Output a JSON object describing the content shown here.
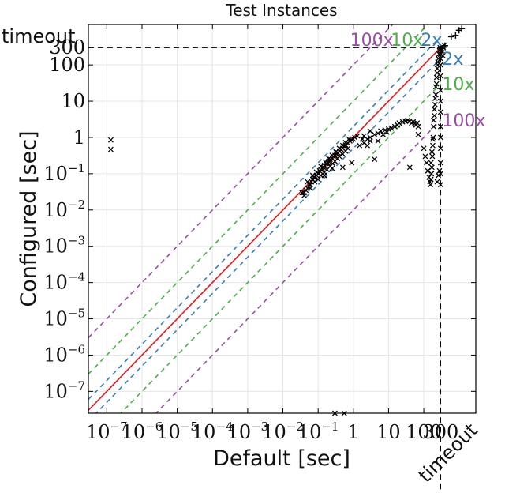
{
  "chart_data": {
    "type": "scatter",
    "title": "Test Instances",
    "xlabel": "Default [sec]",
    "ylabel": "Configured [sec]",
    "scale": "log",
    "xlim": [
      3e-08,
      3000
    ],
    "ylim": [
      2.5e-08,
      1300
    ],
    "timeout_value": 300,
    "timeout_label": "timeout",
    "x_ticks": [
      {
        "value": 1e-07,
        "base": "10",
        "exp": "−7"
      },
      {
        "value": 1e-06,
        "base": "10",
        "exp": "−6"
      },
      {
        "value": 1e-05,
        "base": "10",
        "exp": "−5"
      },
      {
        "value": 0.0001,
        "base": "10",
        "exp": "−4"
      },
      {
        "value": 0.001,
        "base": "10",
        "exp": "−3"
      },
      {
        "value": 0.01,
        "base": "10",
        "exp": "−2"
      },
      {
        "value": 0.1,
        "base": "10",
        "exp": "−1"
      },
      {
        "value": 1,
        "base": "1",
        "exp": ""
      },
      {
        "value": 10,
        "base": "10",
        "exp": ""
      },
      {
        "value": 100,
        "base": "100",
        "exp": ""
      },
      {
        "value": 300,
        "base": "300",
        "exp": ""
      }
    ],
    "y_ticks": [
      {
        "value": 1e-07,
        "base": "10",
        "exp": "−7"
      },
      {
        "value": 1e-06,
        "base": "10",
        "exp": "−6"
      },
      {
        "value": 1e-05,
        "base": "10",
        "exp": "−5"
      },
      {
        "value": 0.0001,
        "base": "10",
        "exp": "−4"
      },
      {
        "value": 0.001,
        "base": "10",
        "exp": "−3"
      },
      {
        "value": 0.01,
        "base": "10",
        "exp": "−2"
      },
      {
        "value": 0.1,
        "base": "10",
        "exp": "−1"
      },
      {
        "value": 1,
        "base": "1",
        "exp": ""
      },
      {
        "value": 10,
        "base": "10",
        "exp": ""
      },
      {
        "value": 100,
        "base": "100",
        "exp": ""
      },
      {
        "value": 300,
        "base": "300",
        "exp": ""
      }
    ],
    "reference_lines": [
      {
        "factor": 100,
        "label": "100x",
        "color": "#984ea3"
      },
      {
        "factor": 10,
        "label": "10x",
        "color": "#4daf4a"
      },
      {
        "factor": 2,
        "label": "2x",
        "color": "#377eb8"
      },
      {
        "factor": 1,
        "label": "",
        "color": "#e41a1c"
      },
      {
        "factor": 0.5,
        "label": "2x",
        "color": "#377eb8"
      },
      {
        "factor": 0.1,
        "label": "10x",
        "color": "#4daf4a"
      },
      {
        "factor": 0.01,
        "label": "100x",
        "color": "#984ea3"
      }
    ],
    "grid": true,
    "marker_color": "#000000",
    "series": [
      {
        "marker": "x",
        "points": [
          [
            1.3e-07,
            0.85
          ],
          [
            1.3e-07,
            0.47
          ],
          [
            0.3,
            2.5e-08
          ],
          [
            0.55,
            2.5e-08
          ],
          [
            0.04,
            0.03
          ],
          [
            0.045,
            0.035
          ],
          [
            0.05,
            0.04
          ],
          [
            0.055,
            0.05
          ],
          [
            0.06,
            0.05
          ],
          [
            0.065,
            0.06
          ],
          [
            0.07,
            0.07
          ],
          [
            0.075,
            0.08
          ],
          [
            0.08,
            0.08
          ],
          [
            0.09,
            0.09
          ],
          [
            0.1,
            0.1
          ],
          [
            0.11,
            0.12
          ],
          [
            0.12,
            0.13
          ],
          [
            0.13,
            0.14
          ],
          [
            0.14,
            0.15
          ],
          [
            0.15,
            0.17
          ],
          [
            0.17,
            0.19
          ],
          [
            0.19,
            0.2
          ],
          [
            0.2,
            0.22
          ],
          [
            0.22,
            0.25
          ],
          [
            0.25,
            0.27
          ],
          [
            0.27,
            0.3
          ],
          [
            0.3,
            0.32
          ],
          [
            0.33,
            0.35
          ],
          [
            0.36,
            0.38
          ],
          [
            0.4,
            0.42
          ],
          [
            0.45,
            0.47
          ],
          [
            0.5,
            0.5
          ],
          [
            0.55,
            0.58
          ],
          [
            0.6,
            0.62
          ],
          [
            0.7,
            0.7
          ],
          [
            0.8,
            0.8
          ],
          [
            0.9,
            0.85
          ],
          [
            1.0,
            0.9
          ],
          [
            1.1,
            1.0
          ],
          [
            1.3,
            1.1
          ],
          [
            0.06,
            0.04
          ],
          [
            0.08,
            0.06
          ],
          [
            0.1,
            0.07
          ],
          [
            0.12,
            0.09
          ],
          [
            0.15,
            0.11
          ],
          [
            0.18,
            0.13
          ],
          [
            0.22,
            0.16
          ],
          [
            0.26,
            0.19
          ],
          [
            0.3,
            0.22
          ],
          [
            0.35,
            0.26
          ],
          [
            0.4,
            0.3
          ],
          [
            0.5,
            0.35
          ],
          [
            0.6,
            0.42
          ],
          [
            0.7,
            0.5
          ],
          [
            0.05,
            0.06
          ],
          [
            0.07,
            0.09
          ],
          [
            0.09,
            0.11
          ],
          [
            0.12,
            0.16
          ],
          [
            0.16,
            0.21
          ],
          [
            0.2,
            0.26
          ],
          [
            0.25,
            0.32
          ],
          [
            0.32,
            0.4
          ],
          [
            0.4,
            0.5
          ],
          [
            0.5,
            0.6
          ],
          [
            0.6,
            0.72
          ],
          [
            0.75,
            0.9
          ],
          [
            0.035,
            0.03
          ],
          [
            0.04,
            0.025
          ],
          [
            0.5,
            0.15
          ],
          [
            0.9,
            0.2
          ],
          [
            0.25,
            0.14
          ],
          [
            0.15,
            0.09
          ],
          [
            4.0,
            0.25
          ],
          [
            1.5,
            0.6
          ],
          [
            2.0,
            0.7
          ],
          [
            2.5,
            0.9
          ],
          [
            3.0,
            1.0
          ],
          [
            4.0,
            1.2
          ],
          [
            5.0,
            1.3
          ],
          [
            6.0,
            1.5
          ],
          [
            8.0,
            1.6
          ],
          [
            10.0,
            1.7
          ],
          [
            12.0,
            1.8
          ],
          [
            15.0,
            2.0
          ],
          [
            18.0,
            2.2
          ],
          [
            20.0,
            2.5
          ],
          [
            25.0,
            2.7
          ],
          [
            30.0,
            2.8
          ],
          [
            35.0,
            3.0
          ],
          [
            40.0,
            2.8
          ],
          [
            45.0,
            2.5
          ],
          [
            50.0,
            2.7
          ],
          [
            55.0,
            2.4
          ],
          [
            60.0,
            2.2
          ],
          [
            65.0,
            2.5
          ],
          [
            70.0,
            2.0
          ],
          [
            2.0,
            1.1
          ],
          [
            2.5,
            0.6
          ],
          [
            3.0,
            0.8
          ],
          [
            1.8,
            0.9
          ],
          [
            5.0,
            0.8
          ],
          [
            7.0,
            1.2
          ],
          [
            9.0,
            1.4
          ],
          [
            3.0,
            1.5
          ],
          [
            40.0,
            0.15
          ],
          [
            70.0,
            1.2
          ],
          [
            100.0,
            0.5
          ],
          [
            110.0,
            0.3
          ],
          [
            120.0,
            0.2
          ],
          [
            130.0,
            0.12
          ],
          [
            140.0,
            0.08
          ],
          [
            150.0,
            0.06
          ],
          [
            155.0,
            0.05
          ],
          [
            160.0,
            0.07
          ],
          [
            165.0,
            0.1
          ],
          [
            170.0,
            0.15
          ],
          [
            175.0,
            0.3
          ],
          [
            180.0,
            0.6
          ],
          [
            185.0,
            1.0
          ],
          [
            190.0,
            2.0
          ],
          [
            200.0,
            4.0
          ],
          [
            210.0,
            8.0
          ],
          [
            220.0,
            15.0
          ],
          [
            230.0,
            30.0
          ],
          [
            240.0,
            60.0
          ],
          [
            250.0,
            100.0
          ],
          [
            260.0,
            150.0
          ],
          [
            270.0,
            200.0
          ],
          [
            280.0,
            250.0
          ],
          [
            290.0,
            300.0
          ],
          [
            160.0,
            0.2
          ],
          [
            170.0,
            0.4
          ],
          [
            180.0,
            0.9
          ],
          [
            190.0,
            3.0
          ],
          [
            200.0,
            6.0
          ],
          [
            210.0,
            12.0
          ],
          [
            220.0,
            25.0
          ],
          [
            230.0,
            45.0
          ],
          [
            240.0,
            80.0
          ],
          [
            250.0,
            120.0
          ],
          [
            300.0,
            0.05
          ],
          [
            300.0,
            0.1
          ],
          [
            300.0,
            0.2
          ],
          [
            300.0,
            0.5
          ],
          [
            300.0,
            1.0
          ],
          [
            300.0,
            2.0
          ],
          [
            300.0,
            5.0
          ],
          [
            300.0,
            10.0
          ],
          [
            300.0,
            20.0
          ],
          [
            300.0,
            50.0
          ],
          [
            300.0,
            100.0
          ],
          [
            300.0,
            150.0
          ],
          [
            300.0,
            200.0
          ],
          [
            280.0,
            0.12
          ],
          [
            260.0,
            0.09
          ],
          [
            240.0,
            0.06
          ],
          [
            320.0,
            250.0
          ],
          [
            330.0,
            220.0
          ],
          [
            350.0,
            180.0
          ],
          [
            360.0,
            300.0
          ],
          [
            380.0,
            350.0
          ]
        ]
      },
      {
        "marker": "+",
        "points": [
          [
            300,
            300
          ],
          [
            400,
            340
          ],
          [
            600,
            600
          ],
          [
            800,
            650
          ],
          [
            1000,
            900
          ],
          [
            1200,
            1000
          ]
        ]
      }
    ]
  }
}
